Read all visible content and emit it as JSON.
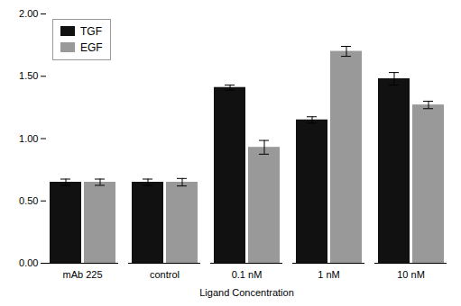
{
  "chart_data": {
    "type": "bar",
    "xlabel": "Ligand Concentration",
    "categories": [
      "mAb 225",
      "control",
      "0.1 nM",
      "1 nM",
      "10 nM"
    ],
    "series": [
      {
        "name": "TGF",
        "color": "#111111",
        "values": [
          0.65,
          0.65,
          1.41,
          1.15,
          1.48
        ],
        "errors": [
          0.025,
          0.025,
          0.02,
          0.025,
          0.05
        ]
      },
      {
        "name": "EGF",
        "color": "#999999",
        "values": [
          0.65,
          0.65,
          0.93,
          1.7,
          1.27
        ],
        "errors": [
          0.025,
          0.03,
          0.055,
          0.04,
          0.03
        ]
      }
    ],
    "ylim": [
      0.0,
      2.0
    ],
    "yticks": [
      {
        "value": 0.0,
        "label": "0.00"
      },
      {
        "value": 0.5,
        "label": "0.50"
      },
      {
        "value": 1.0,
        "label": "1.00"
      },
      {
        "value": 1.5,
        "label": "1.50"
      },
      {
        "value": 2.0,
        "label": "2.00"
      }
    ],
    "legend": "upper left",
    "grid": false
  }
}
